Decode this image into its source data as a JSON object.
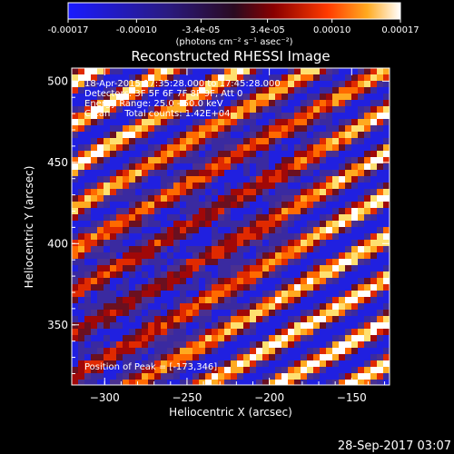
{
  "chart_data": {
    "type": "heatmap",
    "title": "Reconstructed RHESSI Image",
    "xlabel": "Heliocentric X (arcsec)",
    "ylabel": "Heliocentric Y (arcsec)",
    "xlim": [
      -320,
      -127
    ],
    "ylim": [
      313,
      508
    ],
    "x_ticks": [
      -300,
      -250,
      -200,
      -150
    ],
    "y_ticks": [
      350,
      400,
      450,
      500
    ],
    "colorbar": {
      "range": [
        -0.00017,
        0.00017
      ],
      "ticks": [
        -0.00017,
        -0.0001,
        -3.4e-05,
        3.4e-05,
        0.0001,
        0.00017
      ],
      "tick_labels": [
        "-0.00017",
        "-0.00010",
        "-3.4e-05",
        "3.4e-05",
        "0.00010",
        "0.00017"
      ],
      "units": "(photons cm⁻² s⁻¹ asec⁻²)"
    },
    "annotations": [
      "18-Apr-2015 17:35:28.000 to 17:45:28.000",
      "Detectors: 3F 5F 6F 7F 8F 9F, Att 0",
      "Energy Range: 25.0 - 50.0 keV",
      "Clean     Total counts: 1.42E+04"
    ],
    "peak_label": "Position of Peak = [-173,346]",
    "peak_position": [
      -173,
      346
    ],
    "colors": {
      "negative": [
        "#0000ff",
        "#3a2a8a",
        "#5a3aa0"
      ],
      "positive": [
        "#5a0000",
        "#c81e0a",
        "#ff8a00",
        "#ffd850",
        "#ffffff"
      ]
    }
  },
  "footer": {
    "timestamp": "28-Sep-2017 03:07"
  }
}
